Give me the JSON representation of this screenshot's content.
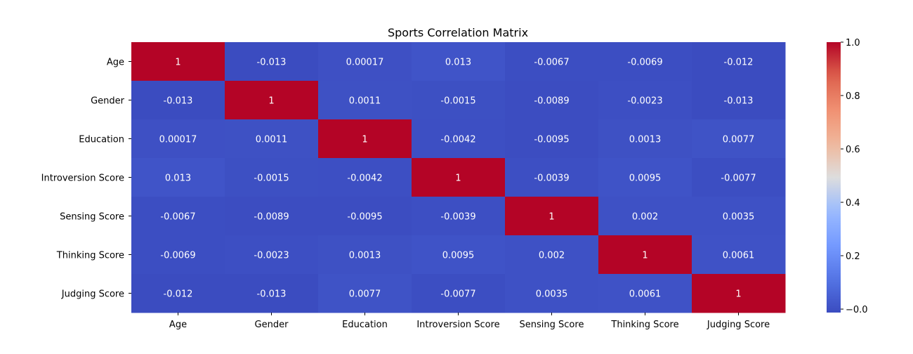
{
  "chart_data": {
    "type": "heatmap",
    "title": "Sports Correlation Matrix",
    "xlabel": "",
    "ylabel": "",
    "x_categories": [
      "Age",
      "Gender",
      "Education",
      "Introversion Score",
      "Sensing Score",
      "Thinking Score",
      "Judging Score"
    ],
    "y_categories": [
      "Age",
      "Gender",
      "Education",
      "Introversion Score",
      "Sensing Score",
      "Thinking Score",
      "Judging Score"
    ],
    "values": [
      [
        1,
        -0.013,
        0.00017,
        0.013,
        -0.0067,
        -0.0069,
        -0.012
      ],
      [
        -0.013,
        1,
        0.0011,
        -0.0015,
        -0.0089,
        -0.0023,
        -0.013
      ],
      [
        0.00017,
        0.0011,
        1,
        -0.0042,
        -0.0095,
        0.0013,
        0.0077
      ],
      [
        0.013,
        -0.0015,
        -0.0042,
        1,
        -0.0039,
        0.0095,
        -0.0077
      ],
      [
        -0.0067,
        -0.0089,
        -0.0095,
        -0.0039,
        1,
        0.002,
        0.0035
      ],
      [
        -0.0069,
        -0.0023,
        0.0013,
        0.0095,
        0.002,
        1,
        0.0061
      ],
      [
        -0.012,
        -0.013,
        0.0077,
        -0.0077,
        0.0035,
        0.0061,
        1
      ]
    ],
    "annotations": [
      [
        "1",
        "-0.013",
        "0.00017",
        "0.013",
        "-0.0067",
        "-0.0069",
        "-0.012"
      ],
      [
        "-0.013",
        "1",
        "0.0011",
        "-0.0015",
        "-0.0089",
        "-0.0023",
        "-0.013"
      ],
      [
        "0.00017",
        "0.0011",
        "1",
        "-0.0042",
        "-0.0095",
        "0.0013",
        "0.0077"
      ],
      [
        "0.013",
        "-0.0015",
        "-0.0042",
        "1",
        "-0.0039",
        "0.0095",
        "-0.0077"
      ],
      [
        "-0.0067",
        "-0.0089",
        "-0.0095",
        "-0.0039",
        "1",
        "0.002",
        "0.0035"
      ],
      [
        "-0.0069",
        "-0.0023",
        "0.0013",
        "0.0095",
        "0.002",
        "1",
        "0.0061"
      ],
      [
        "-0.012",
        "-0.013",
        "0.0077",
        "-0.0077",
        "0.0035",
        "0.0061",
        "1"
      ]
    ],
    "colormap": "coolwarm",
    "colorbar": {
      "range": [
        -0.013,
        1.0
      ],
      "ticks": [
        0.0,
        0.2,
        0.4,
        0.6,
        0.8,
        1.0
      ],
      "tick_labels": [
        "−0.0",
        "0.2",
        "0.4",
        "0.6",
        "0.8",
        "1.0"
      ]
    },
    "grid": false,
    "legend": "none"
  }
}
